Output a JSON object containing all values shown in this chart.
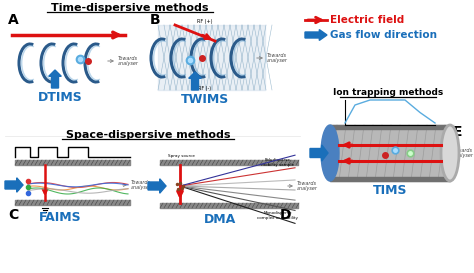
{
  "bg_color": "#ffffff",
  "panel_label_color": "#000000",
  "section_titles": {
    "time_dispersive": "Time-dispersive methods",
    "space_dispersive": "Space-dispersive methods",
    "ion_trapping": "Ion trapping methods"
  },
  "instrument_labels": {
    "DTIMS": "DTIMS",
    "TWIMS": "TWIMS",
    "FAIMS": "FAIMS",
    "DMA": "DMA",
    "TIMS": "TIMS"
  },
  "instrument_label_color": "#1a6fba",
  "legend_electric_field": "Electric field",
  "legend_gas_flow": "Gas flow direction",
  "electric_field_color": "#dd1111",
  "gas_flow_color": "#1a6fba",
  "figure_width": 4.74,
  "figure_height": 2.73,
  "dpi": 100
}
